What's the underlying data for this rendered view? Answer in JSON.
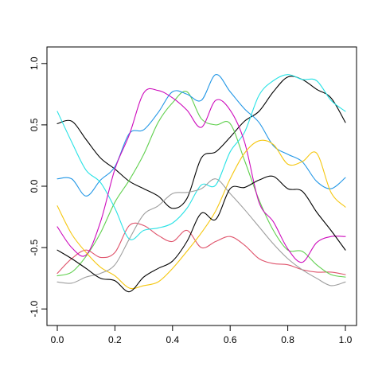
{
  "chart_data": {
    "type": "line",
    "title": "",
    "xlabel": "",
    "ylabel": "",
    "xlim": [
      0,
      1
    ],
    "ylim": [
      -1,
      1
    ],
    "xticks": [
      0.0,
      0.2,
      0.4,
      0.6,
      0.8,
      1.0
    ],
    "xtick_labels": [
      "0.0",
      "0.2",
      "0.4",
      "0.6",
      "0.8",
      "1.0"
    ],
    "yticks": [
      -1.0,
      -0.5,
      0.0,
      0.5,
      1.0
    ],
    "ytick_labels": [
      "-1.0",
      "-0.5",
      "0.0",
      "0.5",
      "1.0"
    ],
    "grid": false,
    "legend": "none",
    "x": [
      0.0,
      0.05,
      0.1,
      0.15,
      0.2,
      0.25,
      0.3,
      0.35,
      0.4,
      0.45,
      0.5,
      0.55,
      0.6,
      0.65,
      0.7,
      0.75,
      0.8,
      0.85,
      0.9,
      0.95,
      1.0
    ],
    "series": [
      {
        "color": "#000000",
        "values": [
          0.51,
          0.53,
          0.38,
          0.23,
          0.14,
          0.04,
          -0.02,
          -0.08,
          -0.18,
          -0.1,
          0.23,
          0.28,
          0.4,
          0.53,
          0.61,
          0.77,
          0.89,
          0.87,
          0.79,
          0.72,
          0.52
        ]
      },
      {
        "color": "#DF536B",
        "values": [
          -0.71,
          -0.59,
          -0.52,
          -0.58,
          -0.54,
          -0.32,
          -0.32,
          -0.4,
          -0.45,
          -0.36,
          -0.5,
          -0.45,
          -0.41,
          -0.48,
          -0.59,
          -0.63,
          -0.64,
          -0.68,
          -0.7,
          -0.7,
          -0.72
        ]
      },
      {
        "color": "#61D04F",
        "values": [
          -0.73,
          -0.7,
          -0.57,
          -0.38,
          -0.13,
          0.05,
          0.26,
          0.52,
          0.68,
          0.77,
          0.55,
          0.5,
          0.51,
          0.21,
          -0.11,
          -0.36,
          -0.52,
          -0.53,
          -0.64,
          -0.72,
          -0.74
        ]
      },
      {
        "color": "#2297E6",
        "values": [
          0.06,
          0.06,
          -0.08,
          0.05,
          0.16,
          0.43,
          0.46,
          0.6,
          0.77,
          0.75,
          0.7,
          0.91,
          0.77,
          0.63,
          0.52,
          0.33,
          0.26,
          0.2,
          0.04,
          -0.02,
          0.07
        ]
      },
      {
        "color": "#28E2E5",
        "values": [
          0.61,
          0.36,
          0.13,
          0.03,
          -0.18,
          -0.43,
          -0.36,
          -0.34,
          -0.3,
          -0.18,
          0.01,
          0.01,
          0.28,
          0.44,
          0.74,
          0.86,
          0.91,
          0.87,
          0.86,
          0.7,
          0.61
        ]
      },
      {
        "color": "#CD0BBC",
        "values": [
          -0.33,
          -0.5,
          -0.56,
          -0.29,
          0.14,
          0.42,
          0.76,
          0.78,
          0.72,
          0.62,
          0.48,
          0.7,
          0.62,
          0.36,
          -0.13,
          -0.29,
          -0.51,
          -0.62,
          -0.46,
          -0.41,
          -0.41
        ]
      },
      {
        "color": "#F5C710",
        "values": [
          -0.16,
          -0.39,
          -0.54,
          -0.66,
          -0.73,
          -0.83,
          -0.81,
          -0.78,
          -0.67,
          -0.53,
          -0.38,
          -0.2,
          0.06,
          0.27,
          0.37,
          0.34,
          0.18,
          0.2,
          0.27,
          -0.05,
          -0.17
        ]
      },
      {
        "color": "#9E9E9E",
        "values": [
          -0.78,
          -0.79,
          -0.74,
          -0.71,
          -0.64,
          -0.43,
          -0.23,
          -0.16,
          -0.06,
          -0.05,
          -0.02,
          0.06,
          -0.06,
          -0.19,
          -0.33,
          -0.47,
          -0.59,
          -0.68,
          -0.75,
          -0.81,
          -0.78
        ]
      },
      {
        "color": "#000000",
        "values": [
          -0.52,
          -0.59,
          -0.67,
          -0.75,
          -0.77,
          -0.86,
          -0.74,
          -0.67,
          -0.61,
          -0.45,
          -0.22,
          -0.27,
          -0.02,
          -0.01,
          0.05,
          0.08,
          -0.02,
          -0.04,
          -0.21,
          -0.36,
          -0.52
        ]
      }
    ]
  }
}
